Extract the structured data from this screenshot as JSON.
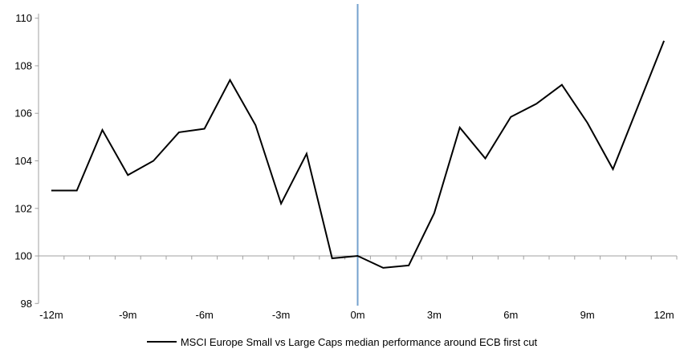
{
  "chart_data": {
    "type": "line",
    "x": [
      -12,
      -11,
      -10,
      -9,
      -8,
      -7,
      -6,
      -5,
      -4,
      -3,
      -2,
      -1,
      0,
      1,
      2,
      3,
      4,
      5,
      6,
      7,
      8,
      9,
      10,
      11,
      12
    ],
    "series": [
      {
        "name": "MSCI Europe Small vs Large Caps median performance around ECB first cut",
        "color": "#000000",
        "values": [
          102.75,
          102.75,
          105.3,
          103.4,
          104.0,
          105.2,
          105.35,
          107.4,
          105.5,
          102.2,
          104.3,
          99.9,
          100.0,
          99.5,
          99.6,
          101.8,
          105.4,
          104.1,
          105.85,
          106.4,
          107.2,
          105.6,
          103.65,
          106.35,
          109.05
        ]
      }
    ],
    "x_tick_positions": [
      -12,
      -9,
      -6,
      -3,
      0,
      3,
      6,
      9,
      12
    ],
    "x_tick_labels": [
      "-12m",
      "-9m",
      "-6m",
      "-3m",
      "0m",
      "3m",
      "6m",
      "9m",
      "12m"
    ],
    "y_ticks": [
      98,
      100,
      102,
      104,
      106,
      108,
      110
    ],
    "ylim": [
      98,
      110
    ],
    "baseline": 100,
    "grid": "baseline-only",
    "legend_position": "bottom",
    "axis_color": "#a0a0a0",
    "event_line": {
      "x": 0,
      "color": "#74a2ce"
    }
  }
}
